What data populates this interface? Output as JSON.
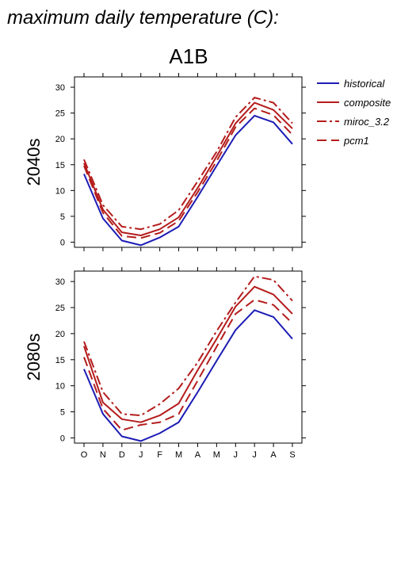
{
  "chart_data": {
    "type": "line",
    "title": "maximum daily temperature (C):",
    "subtitle": "A1B",
    "categories": [
      "O",
      "N",
      "D",
      "J",
      "F",
      "M",
      "A",
      "M",
      "J",
      "J",
      "A",
      "S"
    ],
    "ylim": [
      -1,
      32
    ],
    "yticks": [
      0,
      5,
      10,
      15,
      20,
      25,
      30
    ],
    "grid": false,
    "legend_position": "right",
    "legend": [
      {
        "name": "historical",
        "color": "#1c1cb4",
        "dash": "solid"
      },
      {
        "name": "composite",
        "color": "#b41c1c",
        "dash": "solid"
      },
      {
        "name": "miroc_3.2",
        "color": "#b41c1c",
        "dash": "dashdot"
      },
      {
        "name": "pcm1",
        "color": "#b41c1c",
        "dash": "longdash"
      }
    ],
    "panels": [
      {
        "label": "2040s",
        "series": [
          {
            "name": "historical",
            "values": [
              13.2,
              4.6,
              0.3,
              -0.6,
              0.9,
              3.0,
              8.8,
              14.8,
              20.7,
              24.5,
              23.2,
              19.0
            ]
          },
          {
            "name": "composite",
            "values": [
              15.3,
              6.3,
              1.9,
              1.3,
              2.5,
              4.8,
              10.5,
              16.6,
              23.0,
              27.0,
              25.6,
              22.0
            ]
          },
          {
            "name": "miroc_3.2",
            "values": [
              16.0,
              7.2,
              3.0,
              2.5,
              3.5,
              6.2,
              11.8,
              17.5,
              24.2,
              28.0,
              27.0,
              23.0
            ]
          },
          {
            "name": "pcm1",
            "values": [
              14.8,
              5.7,
              1.2,
              0.8,
              1.8,
              4.1,
              9.7,
              15.7,
              22.3,
              25.9,
              24.6,
              20.8
            ]
          }
        ]
      },
      {
        "label": "2080s",
        "series": [
          {
            "name": "historical",
            "values": [
              13.2,
              4.6,
              0.3,
              -0.6,
              0.9,
              3.0,
              8.8,
              14.8,
              20.7,
              24.5,
              23.2,
              19.0
            ]
          },
          {
            "name": "composite",
            "values": [
              17.6,
              6.8,
              3.6,
              3.0,
              4.3,
              6.6,
              13.0,
              19.0,
              25.2,
              29.0,
              27.5,
              23.8
            ]
          },
          {
            "name": "miroc_3.2",
            "values": [
              18.5,
              8.8,
              4.6,
              4.3,
              6.5,
              9.5,
              14.5,
              20.5,
              26.0,
              31.0,
              30.3,
              26.3
            ]
          },
          {
            "name": "pcm1",
            "values": [
              15.5,
              5.6,
              1.5,
              2.5,
              3.0,
              4.6,
              11.0,
              17.5,
              23.8,
              26.5,
              25.5,
              22.0
            ]
          }
        ]
      }
    ]
  }
}
